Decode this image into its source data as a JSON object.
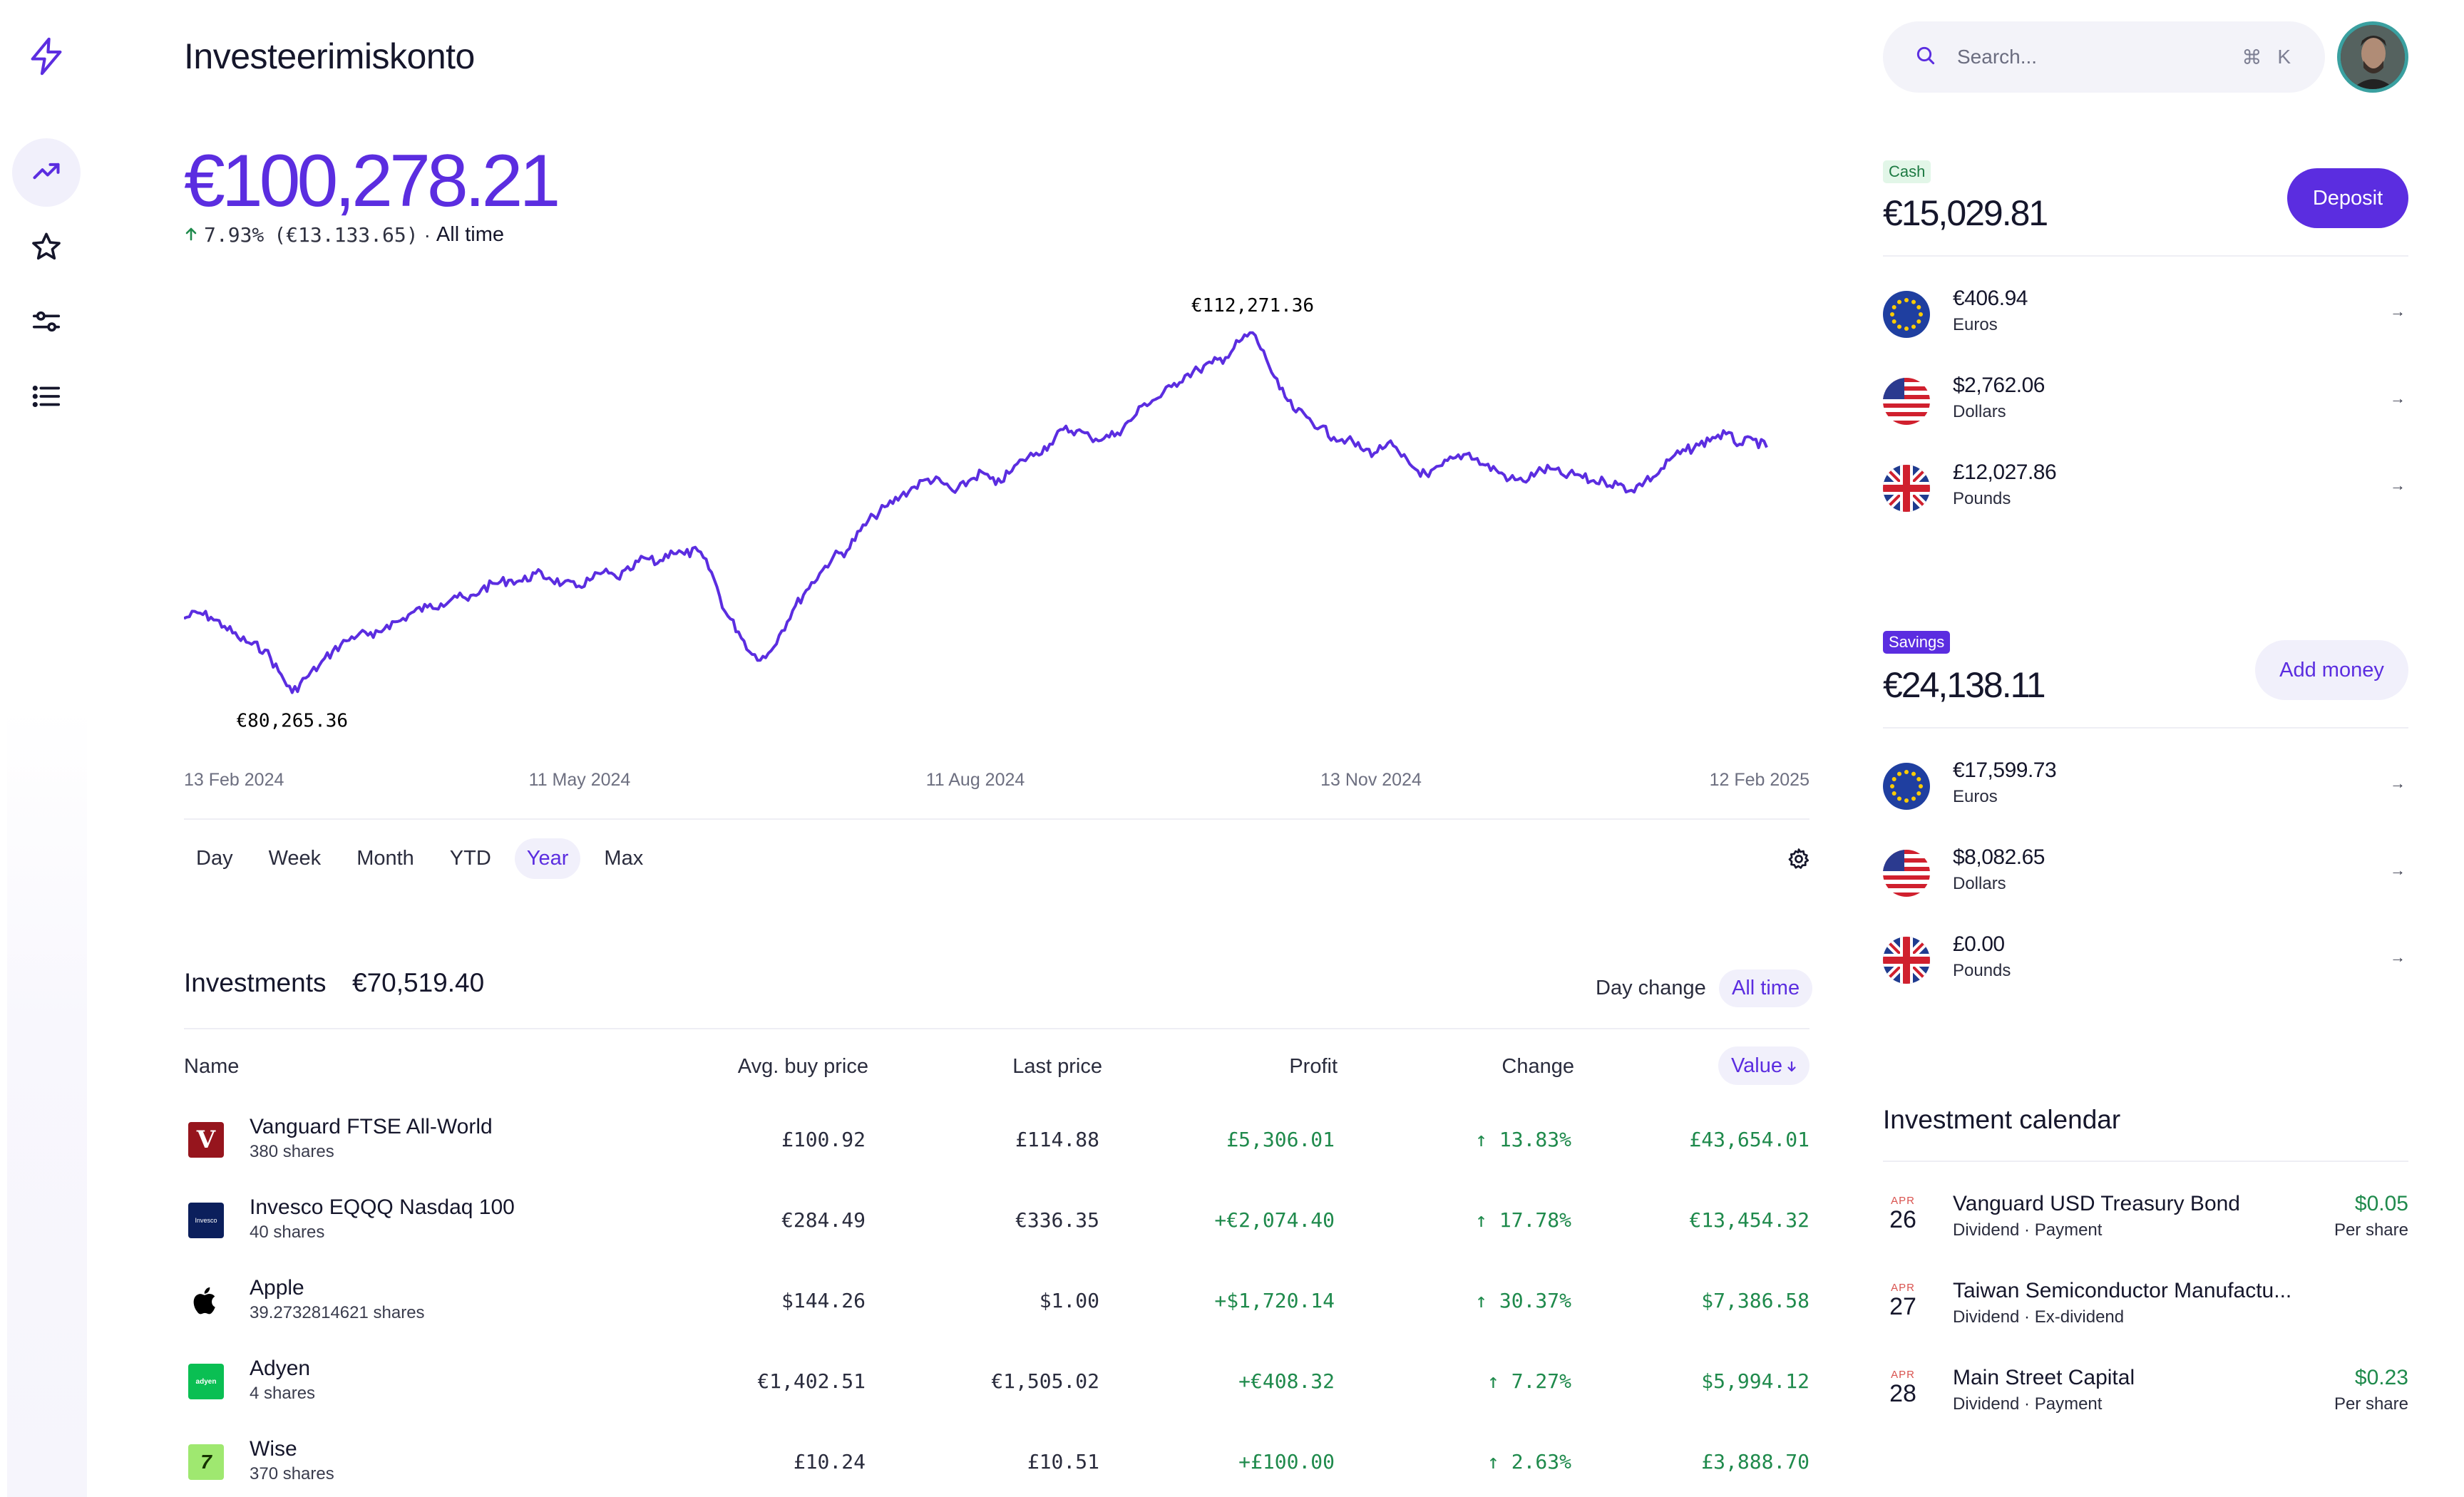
{
  "header": {
    "title": "Investeerimiskonto",
    "search_placeholder": "Search...",
    "search_shortcut_symbol": "⌘",
    "search_shortcut_key": "K"
  },
  "nav": {
    "items": [
      {
        "name": "performance",
        "icon": "trending-up-icon",
        "active": true
      },
      {
        "name": "favorites",
        "icon": "star-icon",
        "active": false
      },
      {
        "name": "filters",
        "icon": "sliders-icon",
        "active": false
      },
      {
        "name": "list",
        "icon": "list-icon",
        "active": false
      }
    ]
  },
  "portfolio": {
    "balance": "€100,278.21",
    "change_pct": "7.93%",
    "change_abs": "(€13.133.65)",
    "separator": "·",
    "period": "All time"
  },
  "chart_data": {
    "type": "line",
    "series": [
      {
        "values": [
          86.9,
          87.4,
          87.0,
          86.2,
          85.2,
          84.6,
          84.1,
          82.2,
          80.3,
          81.6,
          82.7,
          84.0,
          84.9,
          85.6,
          85.2,
          86.3,
          86.7,
          87.5,
          87.9,
          88.2,
          88.9,
          88.5,
          89.5,
          90.0,
          90.3,
          90.2,
          90.9,
          90.5,
          90.0,
          89.7,
          90.3,
          91.0,
          90.5,
          91.2,
          92.3,
          91.8,
          92.9,
          92.6,
          92.9,
          91.0,
          87.5,
          85.7,
          83.7,
          83.4,
          85.4,
          87.6,
          89.4,
          90.9,
          92.4,
          92.9,
          94.7,
          96.0,
          96.9,
          97.8,
          98.6,
          99.3,
          99.0,
          98.1,
          99.1,
          99.9,
          98.8,
          99.8,
          101.0,
          101.6,
          102.4,
          103.7,
          103.6,
          103.0,
          102.9,
          103.4,
          104.5,
          106.0,
          106.5,
          107.5,
          108.5,
          109.0,
          109.6,
          110.1,
          111.5,
          112.3,
          110.0,
          107.3,
          105.5,
          104.8,
          103.9,
          103.0,
          102.8,
          102.0,
          101.6,
          102.5,
          101.3,
          100.2,
          99.5,
          100.5,
          101.2,
          101.6,
          100.6,
          100.1,
          99.3,
          99.1,
          99.9,
          100.2,
          99.6,
          99.7,
          99.1,
          99.1,
          98.8,
          98.3,
          99.1,
          99.8,
          101.2,
          101.8,
          102.3,
          103.0,
          103.3,
          102.4,
          102.8,
          102.1
        ],
        "color": "#5b2de0"
      }
    ],
    "start_date": "13 Feb 2024",
    "end_date": "12 Feb 2025",
    "x_tick_labels": [
      "13 Feb 2024",
      "11 May 2024",
      "11 Aug 2024",
      "13 Nov 2024",
      "12 Feb 2025"
    ],
    "ylim": [
      78.5,
      114.0
    ],
    "max_label": "€112,271.36",
    "min_label": "€80,265.36",
    "grid": false,
    "legend": "none"
  },
  "periods": {
    "items": [
      "Day",
      "Week",
      "Month",
      "YTD",
      "Year",
      "Max"
    ],
    "selected": "Year"
  },
  "investments": {
    "title": "Investments",
    "total": "€70,519.40",
    "toggles": [
      "Day change",
      "All time"
    ],
    "columns": {
      "name": "Name",
      "avg_buy": "Avg. buy price",
      "last": "Last price",
      "profit": "Profit",
      "change": "Change",
      "value": "Value"
    },
    "rows": [
      {
        "name": "Vanguard FTSE All-World",
        "shares": "380 shares",
        "avg": "£100.92",
        "last": "£114.88",
        "profit": "£5,306.01",
        "change": "13.83%",
        "value": "£43,654.01",
        "logo": "vanguard-logo",
        "logo_color": "#96151d",
        "logo_text": "V"
      },
      {
        "name": "Invesco EQQQ Nasdaq 100",
        "shares": "40 shares",
        "avg": "€284.49",
        "last": "€336.35",
        "profit": "+€2,074.40",
        "change": "17.78%",
        "value": "€13,454.32",
        "logo": "invesco-logo",
        "logo_color": "#0b1f5c",
        "logo_text": "Invesco"
      },
      {
        "name": "Apple",
        "shares": "39.2732814621 shares",
        "avg": "$144.26",
        "last": "$1.00",
        "profit": "+$1,720.14",
        "change": "30.37%",
        "value": "$7,386.58",
        "logo": "apple-logo",
        "logo_color": "#000000",
        "logo_text": ""
      },
      {
        "name": "Adyen",
        "shares": "4 shares",
        "avg": "€1,402.51",
        "last": "€1,505.02",
        "profit": "+€408.32",
        "change": "7.27%",
        "value": "$5,994.12",
        "logo": "adyen-logo",
        "logo_color": "#0abf53",
        "logo_text": "adyen"
      },
      {
        "name": "Wise",
        "shares": "370 shares",
        "avg": "£10.24",
        "last": "£10.51",
        "profit": "+£100.00",
        "change": "2.63%",
        "value": "£3,888.70",
        "logo": "wise-logo",
        "logo_color": "#9fe870",
        "logo_text": "7"
      }
    ]
  },
  "cash": {
    "badge": "Cash",
    "amount": "€15,029.81",
    "button": "Deposit",
    "accounts": [
      {
        "amount": "€406.94",
        "currency": "Euros",
        "flag": "eu-flag-icon"
      },
      {
        "amount": "$2,762.06",
        "currency": "Dollars",
        "flag": "us-flag-icon"
      },
      {
        "amount": "£12,027.86",
        "currency": "Pounds",
        "flag": "uk-flag-icon"
      }
    ]
  },
  "savings": {
    "badge": "Savings",
    "amount": "€24,138.11",
    "button": "Add money",
    "accounts": [
      {
        "amount": "€17,599.73",
        "currency": "Euros",
        "flag": "eu-flag-icon"
      },
      {
        "amount": "$8,082.65",
        "currency": "Dollars",
        "flag": "us-flag-icon"
      },
      {
        "amount": "£0.00",
        "currency": "Pounds",
        "flag": "uk-flag-icon"
      }
    ]
  },
  "calendar": {
    "title": "Investment calendar",
    "events": [
      {
        "month": "APR",
        "day": "26",
        "name": "Vanguard USD Treasury Bond",
        "type": "Dividend",
        "status": "Payment",
        "amount": "$0.05",
        "per": "Per share"
      },
      {
        "month": "APR",
        "day": "27",
        "name": "Taiwan Semiconductor Manufactu...",
        "type": "Dividend",
        "status": "Ex-dividend",
        "amount": "",
        "per": ""
      },
      {
        "month": "APR",
        "day": "28",
        "name": "Main Street Capital",
        "type": "Dividend",
        "status": "Payment",
        "amount": "$0.23",
        "per": "Per share"
      }
    ]
  },
  "colors": {
    "accent": "#5b2de0",
    "positive": "#1f8a4c",
    "accent_soft": "#f1f0fb"
  }
}
